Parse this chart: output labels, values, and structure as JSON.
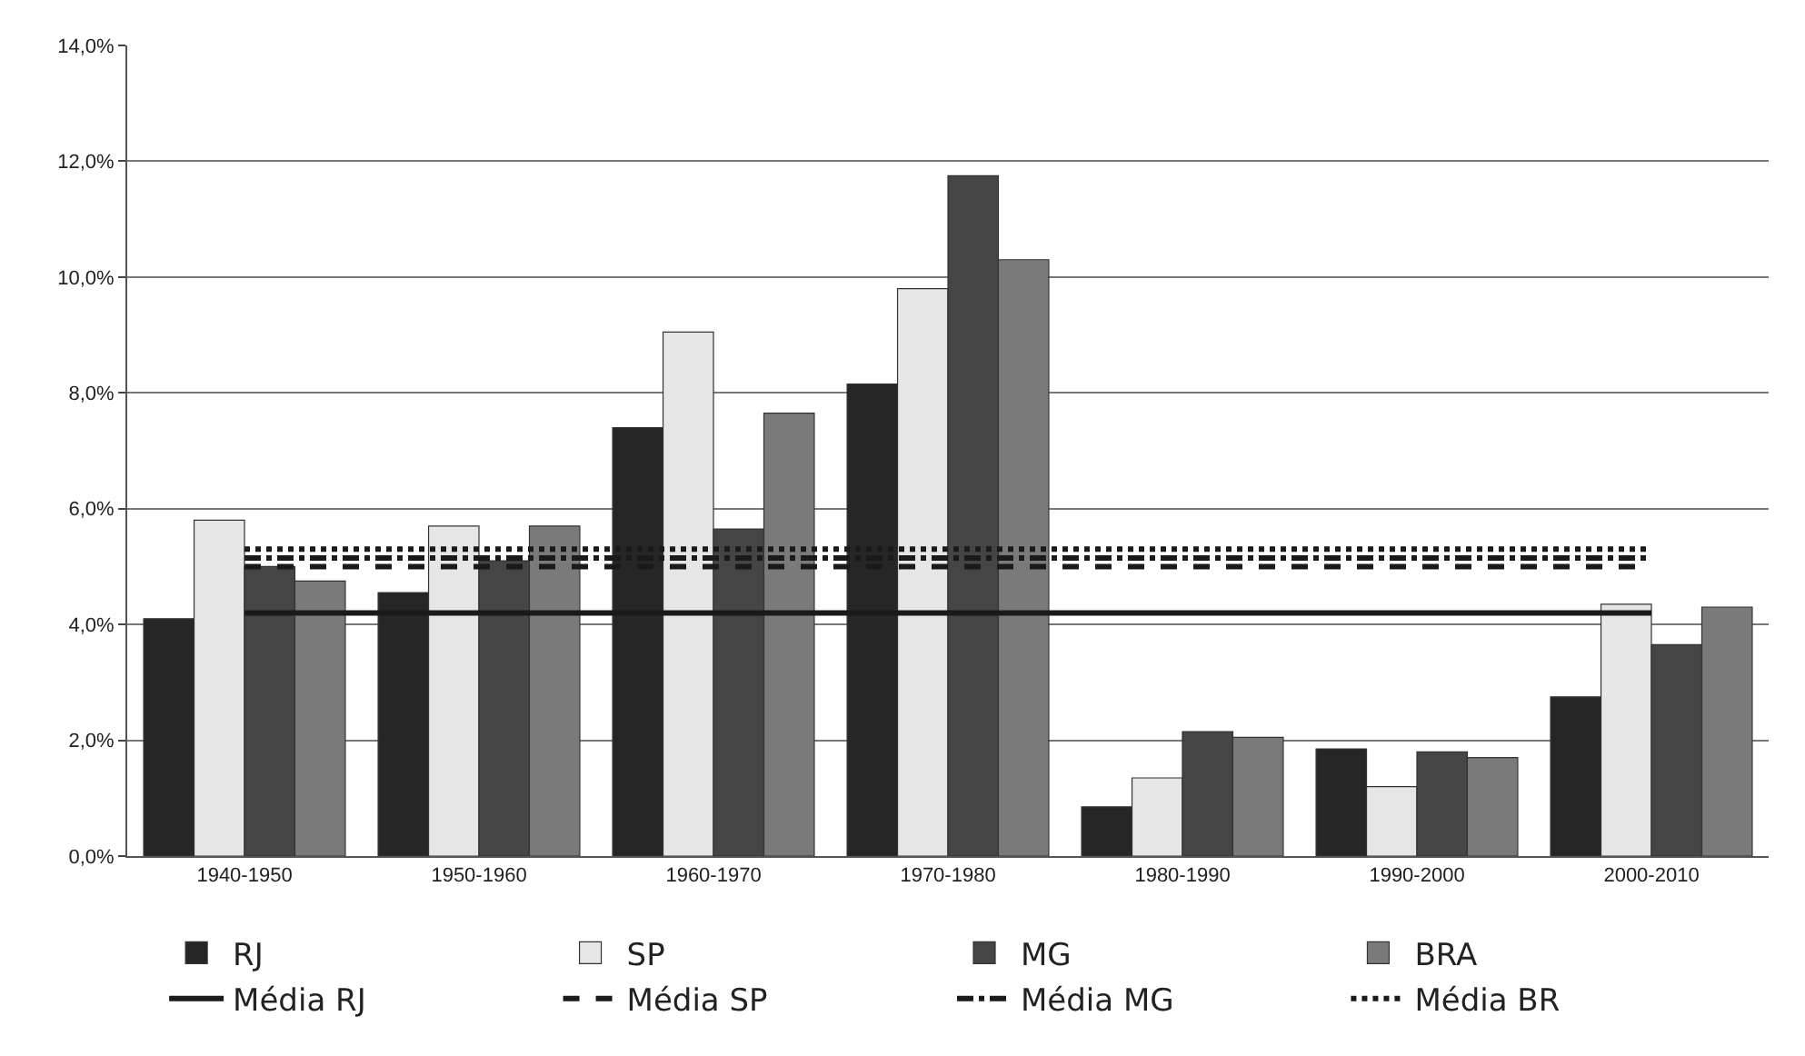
{
  "chart_data": {
    "type": "bar",
    "categories": [
      "1940-1950",
      "1950-1960",
      "1960-1970",
      "1970-1980",
      "1980-1990",
      "1990-2000",
      "2000-2010"
    ],
    "series": [
      {
        "name": "RJ",
        "color": "#262626",
        "values": [
          4.1,
          4.55,
          7.4,
          8.15,
          0.85,
          1.85,
          2.75
        ]
      },
      {
        "name": "SP",
        "color": "#e6e6e6",
        "values": [
          5.8,
          5.7,
          9.05,
          9.8,
          1.35,
          1.2,
          4.35
        ]
      },
      {
        "name": "MG",
        "color": "#454545",
        "values": [
          5.0,
          5.1,
          5.65,
          11.75,
          2.15,
          1.8,
          3.65
        ]
      },
      {
        "name": "BRA",
        "color": "#7a7a7a",
        "values": [
          4.75,
          5.7,
          7.65,
          10.3,
          2.05,
          1.7,
          4.3
        ]
      },
      {
        "name": "Média RJ",
        "type": "line",
        "color": "#1a1a1a",
        "line_style": "solid",
        "values": [
          4.2,
          4.2,
          4.2,
          4.2,
          4.2,
          4.2,
          4.2
        ]
      },
      {
        "name": "Média SP",
        "type": "line",
        "color": "#1a1a1a",
        "line_style": "dashed",
        "values": [
          5.0,
          5.0,
          5.0,
          5.0,
          5.0,
          5.0,
          5.0
        ]
      },
      {
        "name": "Média MG",
        "type": "line",
        "color": "#1a1a1a",
        "line_style": "dashdot",
        "values": [
          5.15,
          5.15,
          5.15,
          5.15,
          5.15,
          5.15,
          5.15
        ]
      },
      {
        "name": "Média BR",
        "type": "line",
        "color": "#1a1a1a",
        "line_style": "dotted",
        "values": [
          5.3,
          5.3,
          5.3,
          5.3,
          5.3,
          5.3,
          5.3
        ]
      }
    ],
    "ylim": [
      0,
      14
    ],
    "yticks": [
      {
        "value": 0,
        "label": "0,0%"
      },
      {
        "value": 2,
        "label": "2,0%"
      },
      {
        "value": 4,
        "label": "4,0%"
      },
      {
        "value": 6,
        "label": "6,0%"
      },
      {
        "value": 8,
        "label": "8,0%"
      },
      {
        "value": 10,
        "label": "10,0%"
      },
      {
        "value": 12,
        "label": "12,0%"
      },
      {
        "value": 14,
        "label": "14,0%"
      }
    ],
    "grid": "y",
    "legend": "bottom",
    "marker": "none"
  }
}
